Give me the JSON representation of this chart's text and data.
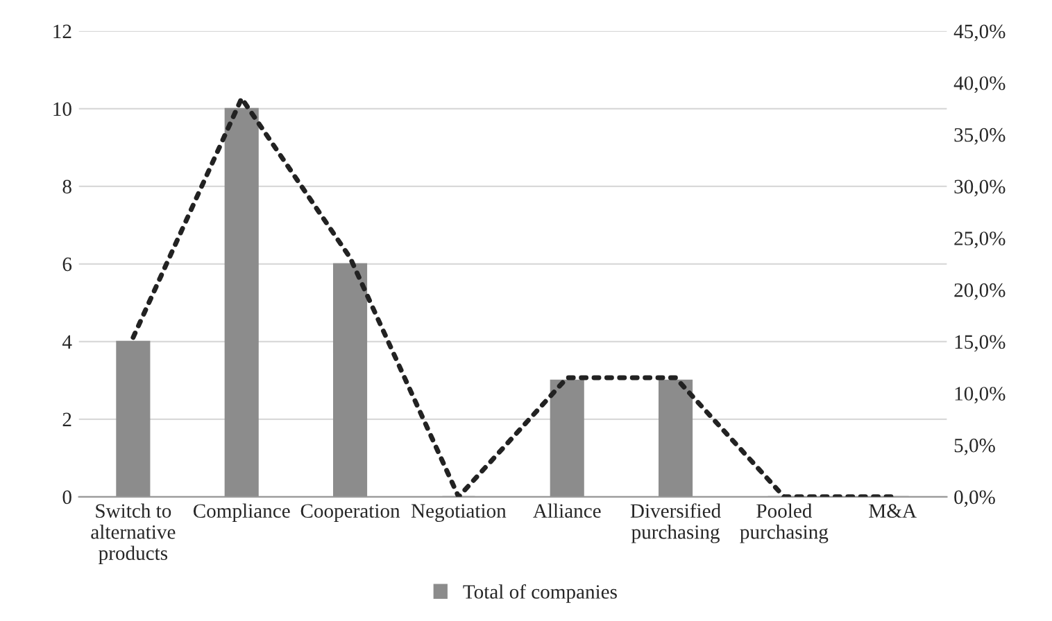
{
  "chart_data": {
    "type": "bar",
    "categories": [
      "Switch to\nalternative\nproducts",
      "Compliance",
      "Cooperation",
      "Negotiation",
      "Alliance",
      "Diversified\npurchasing",
      "Pooled\npurchasing",
      "M&A"
    ],
    "series": [
      {
        "name": "Total of companies",
        "color": "#8c8c8c",
        "values": [
          4,
          10,
          6,
          0,
          3,
          3,
          0,
          0
        ]
      },
      {
        "type": "line",
        "axis": "y2",
        "color": "#222222",
        "line_style": "dotted",
        "values": [
          15.4,
          38.5,
          23.1,
          0,
          11.5,
          11.5,
          0,
          0
        ]
      }
    ],
    "ylim": [
      0,
      12
    ],
    "yticks": [
      0,
      2,
      4,
      6,
      8,
      10,
      12
    ],
    "y2lim": [
      0,
      45
    ],
    "y2ticks": [
      {
        "value": 0,
        "label": "0,0%"
      },
      {
        "value": 5,
        "label": "5,0%"
      },
      {
        "value": 10,
        "label": "10,0%"
      },
      {
        "value": 15,
        "label": "15,0%"
      },
      {
        "value": 20,
        "label": "20,0%"
      },
      {
        "value": 25,
        "label": "25,0%"
      },
      {
        "value": 30,
        "label": "30,0%"
      },
      {
        "value": 35,
        "label": "35,0%"
      },
      {
        "value": 40,
        "label": "40,0%"
      },
      {
        "value": 45,
        "label": "45,0%"
      }
    ],
    "grid": "y",
    "legend": "bottom"
  }
}
